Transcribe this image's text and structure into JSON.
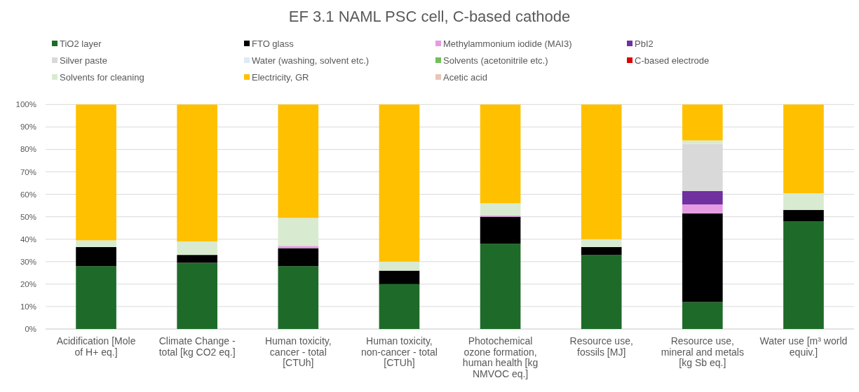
{
  "chart_data": {
    "type": "bar",
    "title": "EF 3.1 NAML PSC cell, C-based cathode",
    "categories": [
      "Acidification [Mole of H+ eq.]",
      "Climate Change - total [kg CO2 eq.]",
      "Human toxicity, cancer - total [CTUh]",
      "Human toxicity, non-cancer - total [CTUh]",
      "Photochemical ozone formation, human health [kg NMVOC eq.]",
      "Resource use, fossils [MJ]",
      "Resource use, mineral and metals [kg Sb eq.]",
      "Water use [m³ world equiv.]"
    ],
    "series": [
      {
        "name": "TiO2 layer",
        "color": "#1e6b29",
        "values": [
          28,
          29.5,
          28,
          20,
          38,
          33,
          12,
          48
        ]
      },
      {
        "name": "FTO glass",
        "color": "#000000",
        "values": [
          8.5,
          3.5,
          8,
          6,
          12,
          3.5,
          39.5,
          5
        ]
      },
      {
        "name": "Methylammonium iodide (MAI3)",
        "color": "#e59be2",
        "values": [
          0,
          0,
          1,
          0,
          0.5,
          0,
          4,
          0
        ]
      },
      {
        "name": "PbI2",
        "color": "#7030a0",
        "values": [
          0,
          0,
          0,
          0,
          0,
          0,
          6,
          0
        ]
      },
      {
        "name": "Silver paste",
        "color": "#d9d9d9",
        "values": [
          0,
          0,
          0,
          0,
          0,
          0,
          21,
          0
        ]
      },
      {
        "name": "Water (washing, solvent etc.)",
        "color": "#ddebf7",
        "values": [
          0,
          0,
          0,
          0,
          0,
          0,
          0,
          0
        ]
      },
      {
        "name": "Solvents (acetonitrile etc.)",
        "color": "#70c05a",
        "values": [
          0,
          0,
          0,
          0,
          0,
          0,
          0,
          0
        ]
      },
      {
        "name": "C-based electrode",
        "color": "#e00000",
        "values": [
          0,
          0,
          0,
          0,
          0,
          0,
          0,
          0
        ]
      },
      {
        "name": "Solvents for cleaning",
        "color": "#d8ebd0",
        "values": [
          3,
          6,
          12.5,
          4,
          5.5,
          3.5,
          1.5,
          7.5
        ]
      },
      {
        "name": "Electricity, GR",
        "color": "#ffc000",
        "values": [
          60.5,
          61,
          50.5,
          70,
          44,
          60,
          16,
          39.5
        ]
      },
      {
        "name": "Acetic acid",
        "color": "#e8c6b8",
        "values": [
          0,
          0,
          0,
          0,
          0,
          0,
          0,
          0
        ]
      }
    ],
    "stacked": true,
    "ylim": [
      0,
      100
    ],
    "yticks": [
      {
        "value": 0,
        "label": "0%"
      },
      {
        "value": 10,
        "label": "10%"
      },
      {
        "value": 20,
        "label": "20%"
      },
      {
        "value": 30,
        "label": "30%"
      },
      {
        "value": 40,
        "label": "40%"
      },
      {
        "value": 50,
        "label": "50%"
      },
      {
        "value": 60,
        "label": "60%"
      },
      {
        "value": 70,
        "label": "70%"
      },
      {
        "value": 80,
        "label": "80%"
      },
      {
        "value": 90,
        "label": "90%"
      },
      {
        "value": 100,
        "label": "100%"
      }
    ],
    "grid": "y",
    "legend": "top"
  }
}
